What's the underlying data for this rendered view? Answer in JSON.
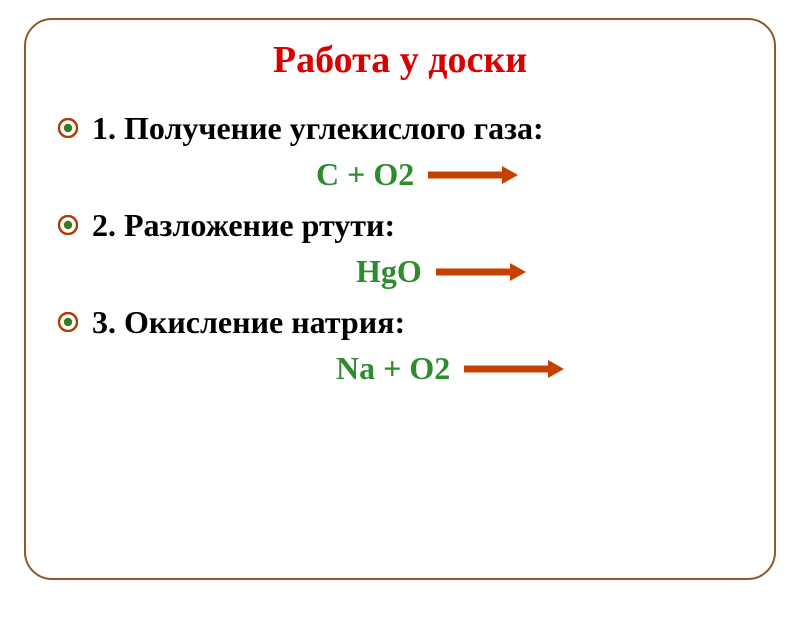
{
  "colors": {
    "title": "#d90000",
    "body_text": "#000000",
    "formula": "#2e8b2e",
    "arrow": "#c44100",
    "bullet_outer": "#b33900",
    "bullet_inner": "#3a7a1f",
    "border": "#8a5a2b"
  },
  "title": "Работа у доски",
  "items": [
    {
      "text": "1. Получение углекислого газа:",
      "formula": "С + О2",
      "indent_class": "indent-1",
      "arrow_width": 90
    },
    {
      "text": "2. Разложение ртути:",
      "formula": "HgO",
      "indent_class": "indent-2",
      "arrow_width": 90
    },
    {
      "text": "3. Окисление натрия:",
      "formula": "Na + O2",
      "indent_class": "indent-3",
      "arrow_width": 100
    }
  ],
  "fontsize": {
    "title": 38,
    "body": 32
  }
}
